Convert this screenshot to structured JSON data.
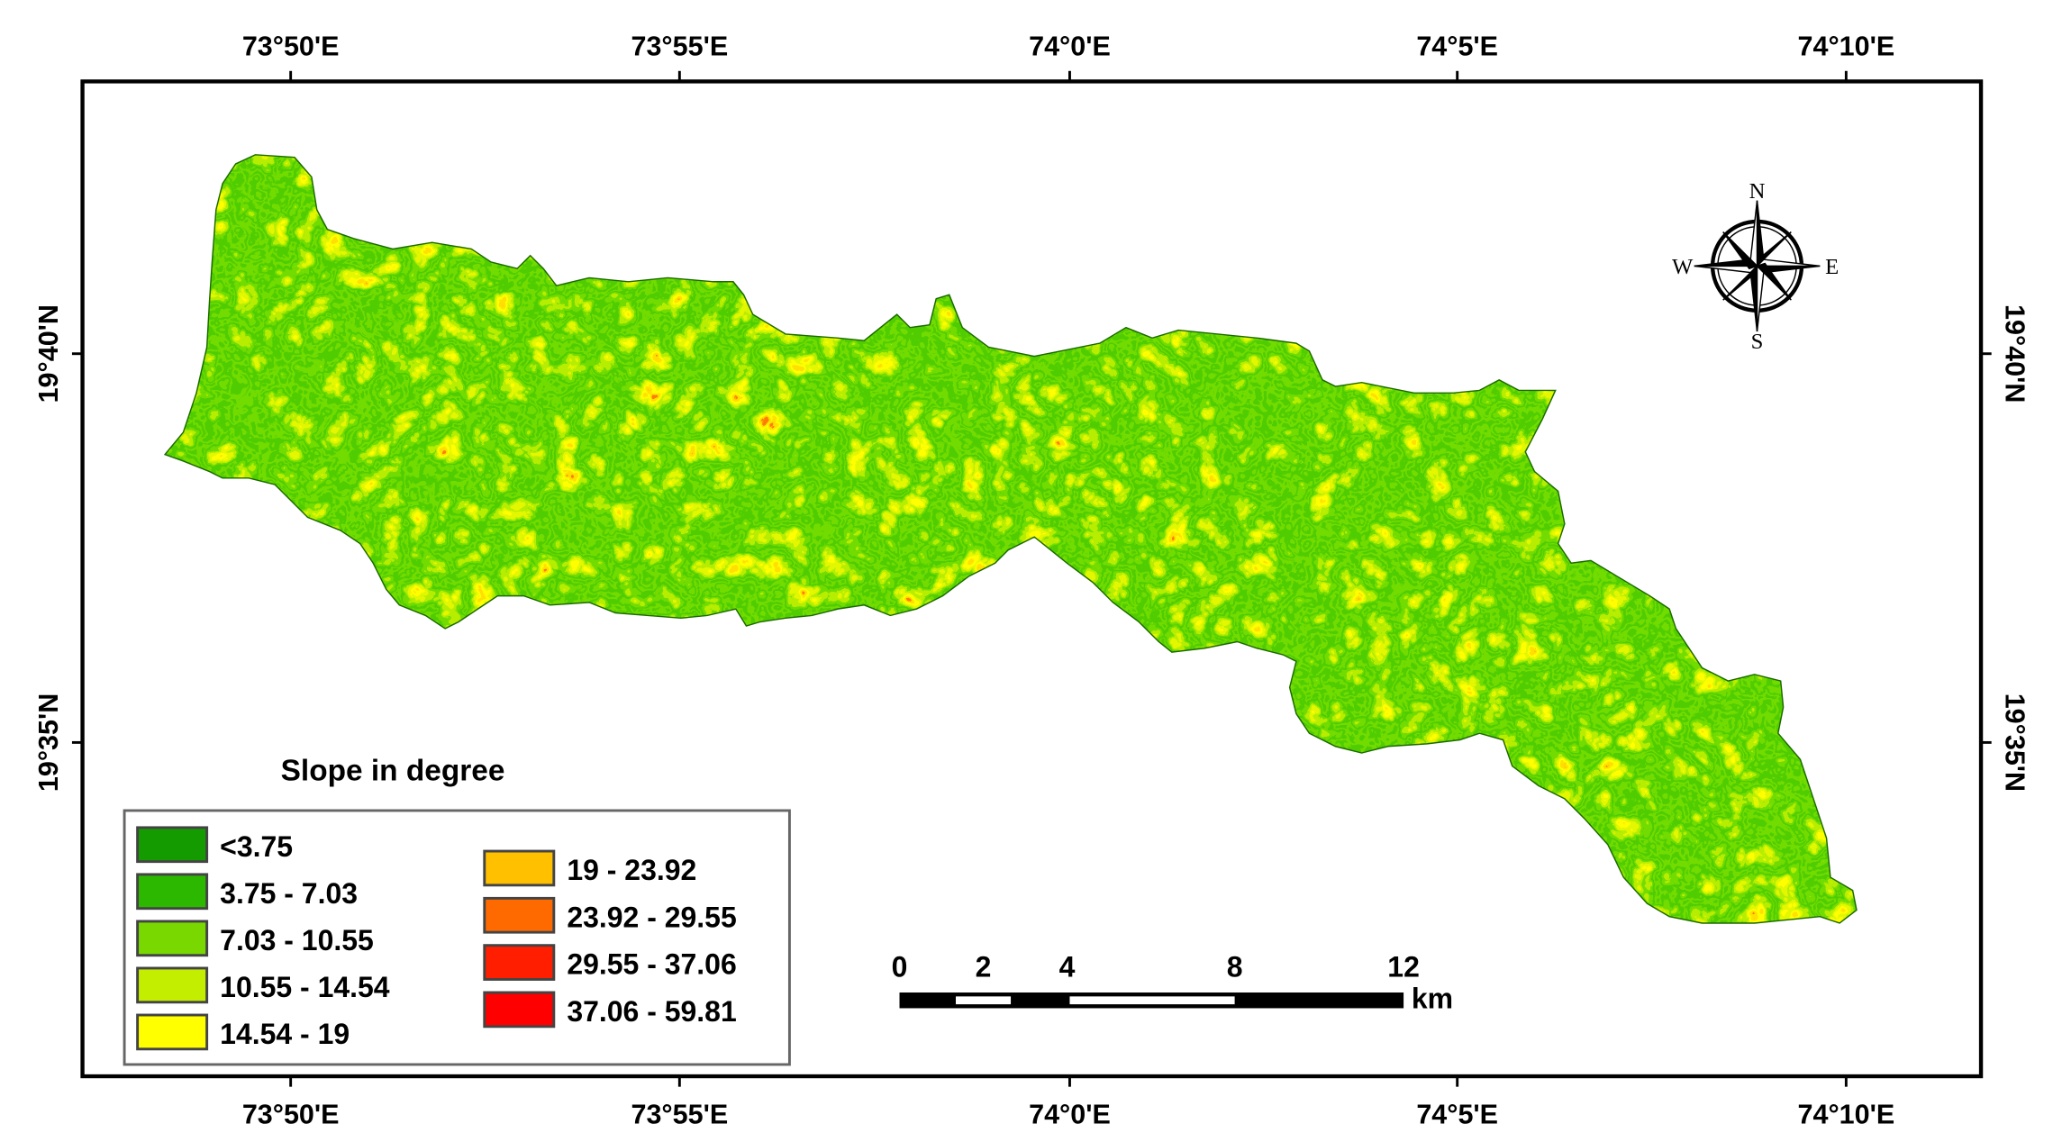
{
  "map": {
    "top_lon_labels": [
      "73°50'E",
      "73°55'E",
      "74°0'E",
      "74°5'E",
      "74°10'E"
    ],
    "bottom_lon_labels": [
      "73°50'E",
      "73°55'E",
      "74°0'E",
      "74°5'E",
      "74°10'E"
    ],
    "left_lat_labels": [
      "19°40'N",
      "19°35'N"
    ],
    "right_lat_labels": [
      "19°40'N",
      "19°35'N"
    ]
  },
  "compass": {
    "n": "N",
    "s": "S",
    "e": "E",
    "w": "W"
  },
  "legend": {
    "title": "Slope in degree",
    "classes": [
      {
        "label": "<3.75",
        "color": "#149B00"
      },
      {
        "label": "3.75 - 7.03",
        "color": "#2DB800"
      },
      {
        "label": "7.03 - 10.55",
        "color": "#78D800"
      },
      {
        "label": "10.55 - 14.54",
        "color": "#C3EE00"
      },
      {
        "label": "14.54 - 19",
        "color": "#FFFF00"
      },
      {
        "label": "19 - 23.92",
        "color": "#FFC000"
      },
      {
        "label": "23.92 - 29.55",
        "color": "#FF6A00"
      },
      {
        "label": "29.55 - 37.06",
        "color": "#FF1E00"
      },
      {
        "label": "37.06 - 59.81",
        "color": "#FF0000"
      }
    ]
  },
  "scale_bar": {
    "ticks": [
      "0",
      "2",
      "4",
      "8",
      "12"
    ],
    "unit": "km"
  }
}
